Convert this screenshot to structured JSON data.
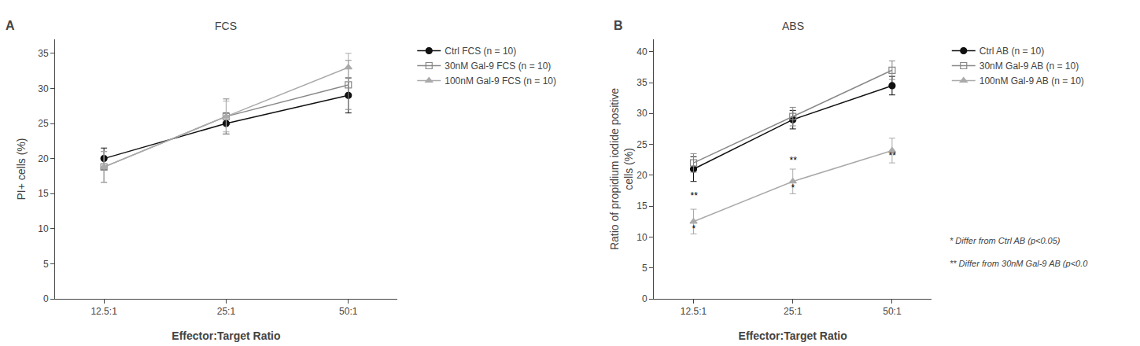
{
  "chart_data": [
    {
      "type": "line",
      "title": "FCS",
      "panel_label": "A",
      "x_label": "Effector:Target Ratio",
      "y_label": "PI+ cells (%)",
      "categories": [
        "12.5:1",
        "25:1",
        "50:1"
      ],
      "series": [
        {
          "name": "Ctrl FCS (n = 10)",
          "color": "#111111",
          "marker": "circle",
          "line_style": "solid",
          "values": [
            20.0,
            25.0,
            29.0
          ],
          "errors": [
            1.5,
            1.5,
            2.5
          ]
        },
        {
          "name": "30nM Gal-9 FCS (n = 10)",
          "color": "#888888",
          "marker": "square-open",
          "line_style": "solid",
          "values": [
            18.8,
            26.0,
            30.5
          ],
          "errors": [
            2.2,
            2.5,
            3.5
          ]
        },
        {
          "name": "100nM Gal-9 FCS (n = 10)",
          "color": "#aaaaaa",
          "marker": "triangle-up",
          "line_style": "solid",
          "values": [
            18.8,
            26.0,
            33.0
          ],
          "errors": [
            2.2,
            2.2,
            2.0
          ]
        }
      ],
      "ylim": [
        0,
        37
      ],
      "yticks": [
        0,
        5,
        10,
        15,
        20,
        25,
        30,
        35
      ],
      "grid": false,
      "legend": "right"
    },
    {
      "type": "line",
      "title": "ABS",
      "panel_label": "B",
      "x_label": "Effector:Target Ratio",
      "y_label": "Ratio of propidium iodide positive\ncells (%)",
      "categories": [
        "12.5:1",
        "25:1",
        "50:1"
      ],
      "series": [
        {
          "name": "Ctrl AB (n = 10)",
          "color": "#111111",
          "marker": "circle",
          "line_style": "solid",
          "values": [
            21.0,
            29.0,
            34.5
          ],
          "errors": [
            2.0,
            1.5,
            1.5
          ]
        },
        {
          "name": "30nM Gal-9 AB (n = 10)",
          "color": "#888888",
          "marker": "square-open",
          "line_style": "solid",
          "values": [
            22.0,
            29.5,
            37.0
          ],
          "errors": [
            1.5,
            1.5,
            1.5
          ]
        },
        {
          "name": "100nM Gal-9 AB (n = 10)",
          "color": "#aaaaaa",
          "marker": "triangle-up",
          "line_style": "solid",
          "values": [
            12.5,
            19.0,
            24.0
          ],
          "errors": [
            2.0,
            2.0,
            2.0
          ]
        }
      ],
      "annotations": [
        {
          "x": "12.5:1",
          "y": 10.2,
          "text": "*"
        },
        {
          "x": "12.5:1",
          "y": 15.5,
          "text": "**"
        },
        {
          "x": "25:1",
          "y": 16.8,
          "text": "*"
        },
        {
          "x": "25:1",
          "y": 21.2,
          "text": "**"
        },
        {
          "x": "50:1",
          "y": 22.0,
          "text": "**"
        }
      ],
      "footnotes": [
        "* Differ from Ctrl AB (p<0.05)",
        "** Differ from 30nM Gal-9 AB (p<0.0"
      ],
      "ylim": [
        0,
        42
      ],
      "yticks": [
        0,
        5,
        10,
        15,
        20,
        25,
        30,
        35,
        40
      ],
      "grid": false,
      "legend": "right"
    }
  ]
}
